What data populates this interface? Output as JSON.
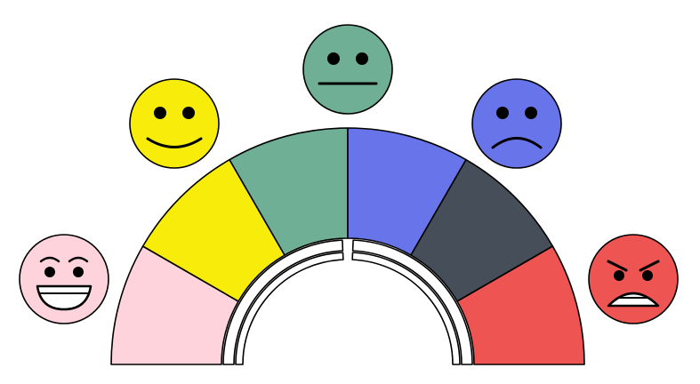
{
  "gauge": {
    "segments": [
      {
        "name": "very-happy",
        "color": "#FFD3DB"
      },
      {
        "name": "happy",
        "color": "#F7EC0A"
      },
      {
        "name": "neutral",
        "color": "#6FAF95"
      },
      {
        "name": "sad",
        "color": "#6774EA"
      },
      {
        "name": "grim",
        "color": "#464E5A"
      },
      {
        "name": "angry",
        "color": "#EE5452"
      }
    ],
    "needle_fill": "#ffffff",
    "outline": "#000000"
  },
  "faces": [
    {
      "name": "very-happy-face",
      "color": "#FFD3DB",
      "expression": "laughing"
    },
    {
      "name": "happy-face",
      "color": "#F7EC0A",
      "expression": "smile"
    },
    {
      "name": "neutral-face",
      "color": "#6FAF95",
      "expression": "neutral"
    },
    {
      "name": "sad-face",
      "color": "#6774EA",
      "expression": "frown"
    },
    {
      "name": "angry-face",
      "color": "#EE5452",
      "expression": "angry"
    }
  ]
}
